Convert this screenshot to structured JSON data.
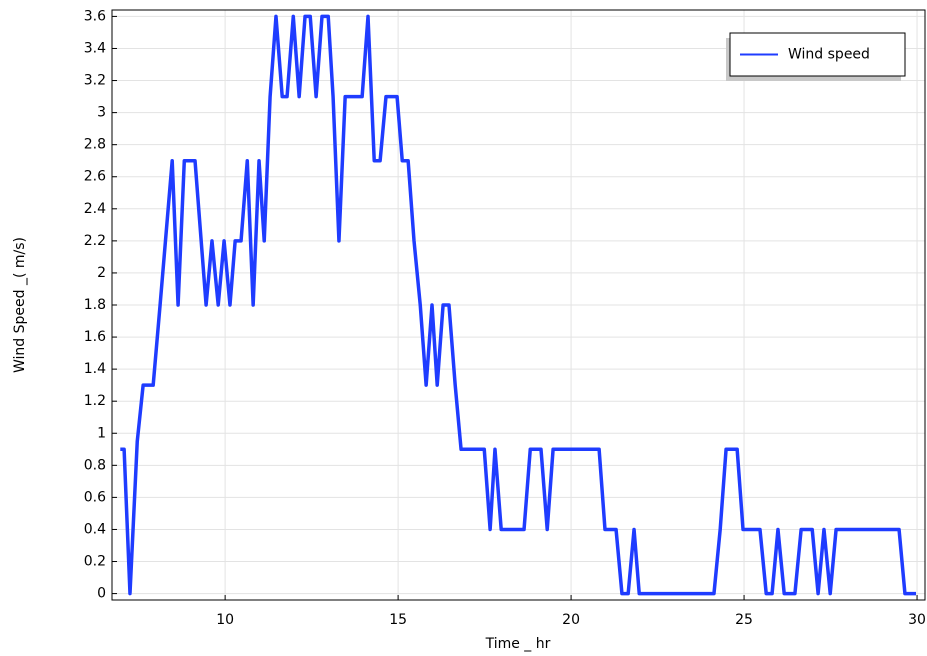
{
  "chart_data": {
    "type": "line",
    "x_label": "Time _ hr",
    "y_label": "Wind Speed _( m/s)",
    "xlim": [
      6.73,
      30.23
    ],
    "ylim": [
      -0.04,
      3.64
    ],
    "xticks": [
      10,
      15,
      20,
      25,
      30
    ],
    "yticks": [
      0,
      0.2,
      0.4,
      0.6,
      0.8,
      1,
      1.2,
      1.4,
      1.6,
      1.8,
      2,
      2.2,
      2.4,
      2.6,
      2.8,
      3,
      3.2,
      3.4,
      3.6
    ],
    "grid": true,
    "legend": "upper right",
    "x": [
      6.97,
      7.08,
      7.25,
      7.46,
      7.63,
      7.92,
      8.12,
      8.47,
      8.64,
      8.82,
      9.13,
      9.45,
      9.62,
      9.8,
      9.97,
      10.14,
      10.29,
      10.46,
      10.64,
      10.81,
      10.98,
      11.13,
      11.3,
      11.47,
      11.65,
      11.79,
      11.97,
      12.14,
      12.31,
      12.46,
      12.63,
      12.8,
      12.98,
      13.12,
      13.29,
      13.47,
      13.96,
      14.13,
      14.31,
      14.48,
      14.65,
      14.97,
      15.12,
      15.29,
      15.46,
      15.64,
      15.81,
      15.98,
      16.13,
      16.3,
      16.47,
      16.65,
      16.82,
      17.49,
      17.66,
      17.8,
      17.98,
      18.64,
      18.82,
      19.13,
      19.31,
      19.48,
      20.81,
      20.98,
      21.3,
      21.47,
      21.65,
      21.82,
      21.97,
      24.13,
      24.31,
      24.48,
      24.8,
      24.97,
      25.46,
      25.64,
      25.81,
      25.98,
      26.16,
      26.47,
      26.65,
      26.97,
      27.14,
      27.31,
      27.49,
      27.66,
      29.48,
      29.65,
      29.97
    ],
    "series": [
      {
        "name": "Wind speed",
        "color": "#1f3cff",
        "values": [
          0.9,
          0.9,
          0,
          0.95,
          1.3,
          1.3,
          1.8,
          2.7,
          1.8,
          2.7,
          2.7,
          1.8,
          2.2,
          1.8,
          2.2,
          1.8,
          2.2,
          2.2,
          2.7,
          1.8,
          2.7,
          2.2,
          3.1,
          3.6,
          3.1,
          3.1,
          3.6,
          3.1,
          3.6,
          3.6,
          3.1,
          3.6,
          3.6,
          3.1,
          2.2,
          3.1,
          3.1,
          3.6,
          2.7,
          2.7,
          3.1,
          3.1,
          2.7,
          2.7,
          2.2,
          1.8,
          1.3,
          1.8,
          1.3,
          1.8,
          1.8,
          1.3,
          0.9,
          0.9,
          0.4,
          0.9,
          0.4,
          0.4,
          0.9,
          0.9,
          0.4,
          0.9,
          0.9,
          0.4,
          0.4,
          0,
          0,
          0.4,
          0,
          0,
          0.4,
          0.9,
          0.9,
          0.4,
          0.4,
          0,
          0,
          0.4,
          0,
          0,
          0.4,
          0.4,
          0,
          0.4,
          0,
          0.4,
          0.4,
          0,
          0
        ]
      }
    ]
  }
}
